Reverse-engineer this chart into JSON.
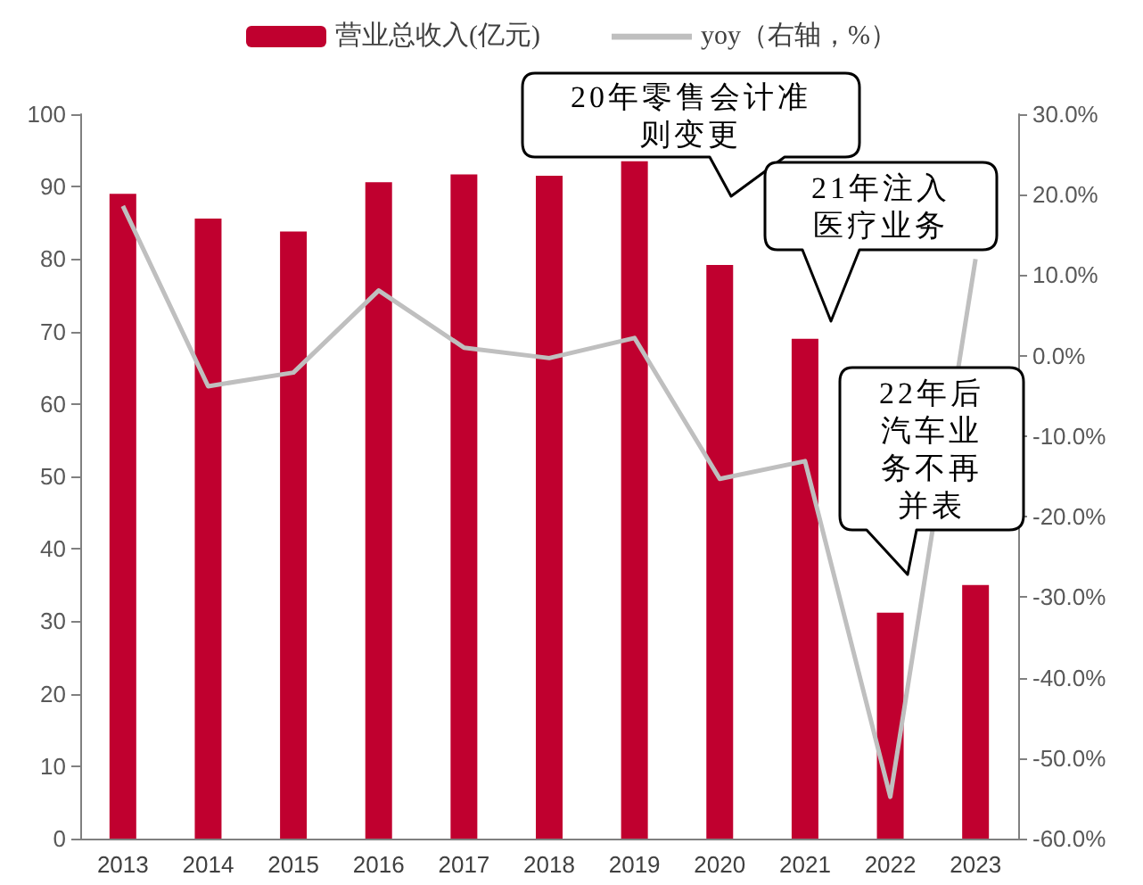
{
  "chart_data": {
    "type": "bar",
    "categories": [
      "2013",
      "2014",
      "2015",
      "2016",
      "2017",
      "2018",
      "2019",
      "2020",
      "2021",
      "2022",
      "2023"
    ],
    "series": [
      {
        "name": "营业总收入(亿元)",
        "color": "#c0002f",
        "values": [
          89,
          85.6,
          83.8,
          90.6,
          91.7,
          91.5,
          93.5,
          79.2,
          69,
          31.2,
          35
        ]
      },
      {
        "name": "yoy（右轴，%）",
        "type": "line",
        "axis": "y2",
        "color": "#bfbfbf",
        "values": [
          18.6,
          -3.8,
          -2.1,
          8.1,
          1.0,
          -0.3,
          2.2,
          -15.3,
          -13.1,
          -54.8,
          12
        ]
      }
    ],
    "ylim": [
      0,
      100
    ],
    "yticks": [
      0,
      10,
      20,
      30,
      40,
      50,
      60,
      70,
      80,
      90,
      100
    ],
    "y2lim": [
      -60,
      30
    ],
    "y2ticks": [
      {
        "value": -60,
        "label": "-60.0%"
      },
      {
        "value": -50,
        "label": "-50.0%"
      },
      {
        "value": -40,
        "label": "-40.0%"
      },
      {
        "value": -30,
        "label": "-30.0%"
      },
      {
        "value": -20,
        "label": "-20.0%"
      },
      {
        "value": -10,
        "label": "-10.0%"
      },
      {
        "value": 0,
        "label": "0.0%"
      },
      {
        "value": 10,
        "label": "10.0%"
      },
      {
        "value": 20,
        "label": "20.0%"
      },
      {
        "value": 30,
        "label": "30.0%"
      }
    ],
    "annotations": [
      "20年零售会计准则变更",
      "21年注入医疗业务",
      "22年后汽车业务不再并表"
    ],
    "grid": false,
    "legend": "top",
    "marker": "none",
    "line_style": "solid"
  }
}
